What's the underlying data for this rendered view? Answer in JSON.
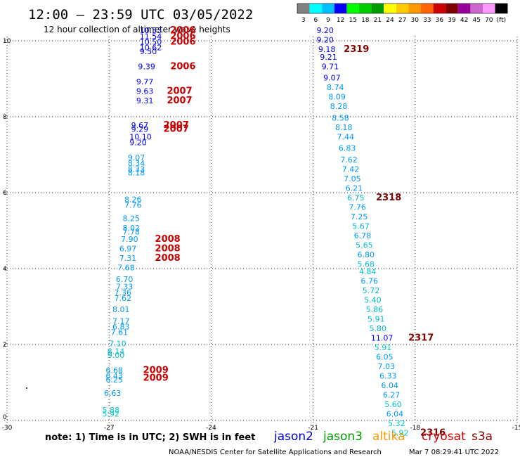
{
  "header": {
    "title": "12:00 — 23:59 UTC 03/05/2022",
    "subtitle": "12 hour collection of altimeter wave heights"
  },
  "legend": {
    "labels": [
      "3",
      "6",
      "9",
      "12",
      "15",
      "18",
      "21",
      "24",
      "27",
      "30",
      "33",
      "36",
      "39",
      "42",
      "45",
      "70",
      "(ft)"
    ],
    "colors": [
      "#808080",
      "#00ffff",
      "#00c0ff",
      "#0000ff",
      "#00ff00",
      "#00cc00",
      "#009900",
      "#ffff00",
      "#ffcc00",
      "#ff9900",
      "#ff6600",
      "#cc0000",
      "#800000",
      "#990099",
      "#cc66cc",
      "#ff99ff",
      "#000000"
    ]
  },
  "footer": {
    "note": "note: 1) Time is in UTC; 2) SWH is in feet",
    "credit": "NOAA/NESDIS Center for Satellite Applications and Research",
    "timestamp": "Mar  7 08:29:41 UTC 2022",
    "satellites": [
      {
        "name": "jason2",
        "color": "#0000cc"
      },
      {
        "name": "jason3",
        "color": "#009900"
      },
      {
        "name": "altika",
        "color": "#ff9900"
      },
      {
        "name": "cryosat",
        "color": "#cc0000"
      },
      {
        "name": "s3a",
        "color": "#800000"
      }
    ]
  },
  "chart_data": {
    "type": "scatter",
    "xlim": [
      -30,
      -15
    ],
    "ylim": [
      0,
      10
    ],
    "xticks": [
      "-30",
      "-27",
      "-24",
      "-21",
      "-18",
      "-15"
    ],
    "yticks": [
      "0",
      "2",
      "4",
      "6",
      "8",
      "10"
    ],
    "grid": true,
    "points": [
      {
        "x": -26.1,
        "y": 10.2,
        "v": "10.53",
        "c": "#0000ff"
      },
      {
        "x": -26.1,
        "y": 10.05,
        "v": "11.54",
        "c": "#0000ff"
      },
      {
        "x": -26.1,
        "y": 9.9,
        "v": "10.50",
        "c": "#0000ff"
      },
      {
        "x": -26.1,
        "y": 9.75,
        "v": "10.62",
        "c": "#0000ff"
      },
      {
        "x": -26.1,
        "y": 9.65,
        "v": "9.50",
        "c": "#0000ff"
      },
      {
        "x": -26.15,
        "y": 9.25,
        "v": "9.39",
        "c": "#0000ff"
      },
      {
        "x": -26.2,
        "y": 8.85,
        "v": "9.77",
        "c": "#0000ff"
      },
      {
        "x": -26.2,
        "y": 8.6,
        "v": "9.63",
        "c": "#0000ff"
      },
      {
        "x": -26.2,
        "y": 8.35,
        "v": "9.31",
        "c": "#0000ff"
      },
      {
        "x": -26.35,
        "y": 7.7,
        "v": "9.67",
        "c": "#0000ff"
      },
      {
        "x": -26.35,
        "y": 7.6,
        "v": "9.29",
        "c": "#0000ff"
      },
      {
        "x": -26.4,
        "y": 7.4,
        "v": "10.10",
        "c": "#0000ff"
      },
      {
        "x": -26.4,
        "y": 7.25,
        "v": "9.20",
        "c": "#0000ff"
      },
      {
        "x": -26.45,
        "y": 6.85,
        "v": "9.07",
        "c": "#0099ff"
      },
      {
        "x": -26.45,
        "y": 6.7,
        "v": "8.34",
        "c": "#0099ff"
      },
      {
        "x": -26.45,
        "y": 6.55,
        "v": "8.33",
        "c": "#0099ff"
      },
      {
        "x": -26.45,
        "y": 6.45,
        "v": "8.18",
        "c": "#0099ff"
      },
      {
        "x": -26.55,
        "y": 5.75,
        "v": "8.26",
        "c": "#0099ff"
      },
      {
        "x": -26.55,
        "y": 5.6,
        "v": "7.76",
        "c": "#0099ff"
      },
      {
        "x": -26.6,
        "y": 5.25,
        "v": "8.25",
        "c": "#0099ff"
      },
      {
        "x": -26.6,
        "y": 5.0,
        "v": "8.02",
        "c": "#0099ff"
      },
      {
        "x": -26.6,
        "y": 4.9,
        "v": "7.78",
        "c": "#0099ff"
      },
      {
        "x": -26.65,
        "y": 4.7,
        "v": "7.90",
        "c": "#0099ff"
      },
      {
        "x": -26.7,
        "y": 4.45,
        "v": "6.97",
        "c": "#0099ff"
      },
      {
        "x": -26.7,
        "y": 4.2,
        "v": "7.31",
        "c": "#0099ff"
      },
      {
        "x": -26.75,
        "y": 3.95,
        "v": "7.68",
        "c": "#0099ff"
      },
      {
        "x": -26.8,
        "y": 3.65,
        "v": "6.70",
        "c": "#0099ff"
      },
      {
        "x": -26.8,
        "y": 3.45,
        "v": "7.33",
        "c": "#0099ff"
      },
      {
        "x": -26.85,
        "y": 3.3,
        "v": "7.36",
        "c": "#0099ff"
      },
      {
        "x": -26.85,
        "y": 3.15,
        "v": "7.62",
        "c": "#0099ff"
      },
      {
        "x": -26.9,
        "y": 2.85,
        "v": "8.01",
        "c": "#0099ff"
      },
      {
        "x": -26.9,
        "y": 2.55,
        "v": "7.17",
        "c": "#0099ff"
      },
      {
        "x": -26.9,
        "y": 2.4,
        "v": "6.83",
        "c": "#0099ff"
      },
      {
        "x": -26.95,
        "y": 2.25,
        "v": "7.61",
        "c": "#0099ff"
      },
      {
        "x": -27.0,
        "y": 1.95,
        "v": "7.10",
        "c": "#00bbcc"
      },
      {
        "x": -27.05,
        "y": 1.75,
        "v": "8.14",
        "c": "#00bbcc"
      },
      {
        "x": -27.05,
        "y": 1.65,
        "v": "9.00",
        "c": "#00bbcc"
      },
      {
        "x": -27.1,
        "y": 1.25,
        "v": "6.68",
        "c": "#0099ff"
      },
      {
        "x": -27.1,
        "y": 1.1,
        "v": "6.43",
        "c": "#0099ff"
      },
      {
        "x": -27.1,
        "y": 1.0,
        "v": "6.25",
        "c": "#0099ff"
      },
      {
        "x": -27.15,
        "y": 0.65,
        "v": "6.63",
        "c": "#0099ff"
      },
      {
        "x": -27.2,
        "y": 0.2,
        "v": "5.88",
        "c": "#00cccc"
      },
      {
        "x": -27.2,
        "y": 0.1,
        "v": "5.92",
        "c": "#00cccc"
      },
      {
        "x": -20.9,
        "y": 10.2,
        "v": "9.20",
        "c": "#0000ff"
      },
      {
        "x": -20.9,
        "y": 9.95,
        "v": "9.20",
        "c": "#0000ff"
      },
      {
        "x": -20.85,
        "y": 9.7,
        "v": "9.18",
        "c": "#0000ff"
      },
      {
        "x": -20.8,
        "y": 9.5,
        "v": "9.21",
        "c": "#0000ff"
      },
      {
        "x": -20.75,
        "y": 9.25,
        "v": "9.71",
        "c": "#0000ff"
      },
      {
        "x": -20.7,
        "y": 8.95,
        "v": "9.07",
        "c": "#0000ff"
      },
      {
        "x": -20.6,
        "y": 8.7,
        "v": "8.74",
        "c": "#0099ff"
      },
      {
        "x": -20.55,
        "y": 8.45,
        "v": "8.09",
        "c": "#0099ff"
      },
      {
        "x": -20.5,
        "y": 8.2,
        "v": "8.28",
        "c": "#0099ff"
      },
      {
        "x": -20.45,
        "y": 7.9,
        "v": "8.58",
        "c": "#0099ff"
      },
      {
        "x": -20.35,
        "y": 7.65,
        "v": "8.18",
        "c": "#0099ff"
      },
      {
        "x": -20.3,
        "y": 7.4,
        "v": "7.44",
        "c": "#0099ff"
      },
      {
        "x": -20.25,
        "y": 7.1,
        "v": "6.83",
        "c": "#0099ff"
      },
      {
        "x": -20.2,
        "y": 6.8,
        "v": "7.62",
        "c": "#0099ff"
      },
      {
        "x": -20.15,
        "y": 6.55,
        "v": "7.42",
        "c": "#0099ff"
      },
      {
        "x": -20.1,
        "y": 6.3,
        "v": "7.05",
        "c": "#0099ff"
      },
      {
        "x": -20.05,
        "y": 6.05,
        "v": "6.21",
        "c": "#0099ff"
      },
      {
        "x": -20.0,
        "y": 5.8,
        "v": "6.75",
        "c": "#00bbcc"
      },
      {
        "x": -19.95,
        "y": 5.55,
        "v": "7.76",
        "c": "#0099ff"
      },
      {
        "x": -19.9,
        "y": 5.3,
        "v": "7.25",
        "c": "#0099ff"
      },
      {
        "x": -19.85,
        "y": 5.05,
        "v": "5.67",
        "c": "#00bbcc"
      },
      {
        "x": -19.8,
        "y": 4.8,
        "v": "6.78",
        "c": "#0099ff"
      },
      {
        "x": -19.75,
        "y": 4.55,
        "v": "5.65",
        "c": "#00bbcc"
      },
      {
        "x": -19.7,
        "y": 4.3,
        "v": "6.80",
        "c": "#0099ff"
      },
      {
        "x": -19.7,
        "y": 4.05,
        "v": "5.68",
        "c": "#00bbcc"
      },
      {
        "x": -19.65,
        "y": 3.85,
        "v": "4.84",
        "c": "#00cccc"
      },
      {
        "x": -19.6,
        "y": 3.6,
        "v": "6.76",
        "c": "#0099ff"
      },
      {
        "x": -19.55,
        "y": 3.35,
        "v": "5.72",
        "c": "#00bbcc"
      },
      {
        "x": -19.5,
        "y": 3.1,
        "v": "5.40",
        "c": "#00bbcc"
      },
      {
        "x": -19.45,
        "y": 2.85,
        "v": "5.86",
        "c": "#00bbcc"
      },
      {
        "x": -19.4,
        "y": 2.6,
        "v": "5.91",
        "c": "#00bbcc"
      },
      {
        "x": -19.35,
        "y": 2.35,
        "v": "5.80",
        "c": "#00bbcc"
      },
      {
        "x": -19.3,
        "y": 2.1,
        "v": "11.07",
        "c": "#0000ff"
      },
      {
        "x": -19.2,
        "y": 1.85,
        "v": "5.91",
        "c": "#00cccc"
      },
      {
        "x": -19.15,
        "y": 1.6,
        "v": "6.05",
        "c": "#0099ff"
      },
      {
        "x": -19.1,
        "y": 1.35,
        "v": "7.03",
        "c": "#0099ff"
      },
      {
        "x": -19.05,
        "y": 1.1,
        "v": "6.33",
        "c": "#0099ff"
      },
      {
        "x": -19.0,
        "y": 0.85,
        "v": "6.04",
        "c": "#0099ff"
      },
      {
        "x": -18.95,
        "y": 0.6,
        "v": "6.27",
        "c": "#0099ff"
      },
      {
        "x": -18.9,
        "y": 0.35,
        "v": "5.60",
        "c": "#00bbcc"
      },
      {
        "x": -18.85,
        "y": 0.1,
        "v": "6.04",
        "c": "#0099ff"
      },
      {
        "x": -18.8,
        "y": -0.15,
        "v": "5.32",
        "c": "#00cccc"
      },
      {
        "x": -18.7,
        "y": -0.4,
        "v": "5.92",
        "c": "#00cccc"
      }
    ],
    "pass_labels": [
      {
        "x": -25.2,
        "y": 10.2,
        "t": "2006",
        "c": "#cc0000"
      },
      {
        "x": -25.2,
        "y": 10.05,
        "t": "2006",
        "c": "#cc0000"
      },
      {
        "x": -25.2,
        "y": 9.9,
        "t": "2006",
        "c": "#cc0000"
      },
      {
        "x": -25.2,
        "y": 9.25,
        "t": "2006",
        "c": "#cc0000"
      },
      {
        "x": -25.3,
        "y": 8.6,
        "t": "2007",
        "c": "#cc0000"
      },
      {
        "x": -25.3,
        "y": 8.35,
        "t": "2007",
        "c": "#cc0000"
      },
      {
        "x": -25.4,
        "y": 7.7,
        "t": "2007",
        "c": "#cc0000"
      },
      {
        "x": -25.4,
        "y": 7.6,
        "t": "2007",
        "c": "#cc0000"
      },
      {
        "x": -25.65,
        "y": 4.7,
        "t": "2008",
        "c": "#cc0000"
      },
      {
        "x": -25.65,
        "y": 4.45,
        "t": "2008",
        "c": "#cc0000"
      },
      {
        "x": -25.65,
        "y": 4.2,
        "t": "2008",
        "c": "#cc0000"
      },
      {
        "x": -26.0,
        "y": 1.25,
        "t": "2009",
        "c": "#cc0000"
      },
      {
        "x": -26.0,
        "y": 1.05,
        "t": "2009",
        "c": "#cc0000"
      },
      {
        "x": -20.1,
        "y": 9.7,
        "t": "2319",
        "c": "#800000"
      },
      {
        "x": -19.15,
        "y": 5.8,
        "t": "2318",
        "c": "#800000"
      },
      {
        "x": -18.2,
        "y": 2.1,
        "t": "2317",
        "c": "#800000"
      },
      {
        "x": -17.85,
        "y": -0.4,
        "t": "2316",
        "c": "#800000"
      }
    ],
    "title": "12:00 — 23:59 UTC 03/05/2022",
    "subtitle": "12 hour collection of altimeter wave heights",
    "xlabel": "",
    "ylabel": ""
  }
}
